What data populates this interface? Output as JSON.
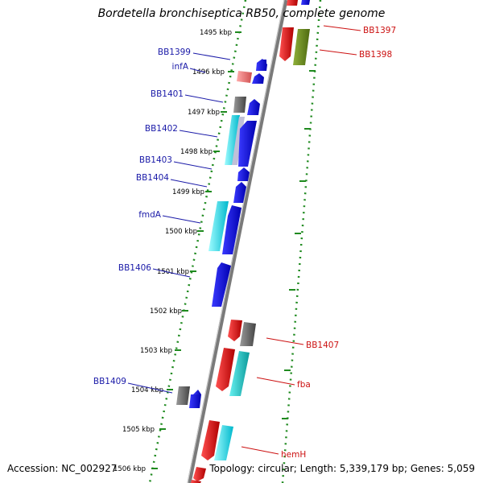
{
  "title": "Bordetella bronchiseptica RB50, complete genome",
  "footer": {
    "accession": "Accession: NC_002927",
    "summary": "Topology: circular; Length: 5,339,179 bp; Genes: 5,059"
  },
  "ticks": [
    "1495 kbp",
    "1496 kbp",
    "1497 kbp",
    "1498 kbp",
    "1499 kbp",
    "1500 kbp",
    "1501 kbp",
    "1502 kbp",
    "1503 kbp",
    "1504 kbp",
    "1505 kbp",
    "1506 kbp"
  ],
  "left_labels": [
    "BB1399",
    "infA",
    "BB1401",
    "BB1402",
    "BB1403",
    "BB1404",
    "fmdA",
    "BB1406",
    "BB1409"
  ],
  "right_labels": [
    "BB1397",
    "BB1398",
    "BB1407",
    "fba",
    "hemH"
  ],
  "colors": {
    "backbone": "#8c8c8c",
    "dotted_track": "#1f8a1f",
    "left_label": "#1a1aa8",
    "right_label": "#cc1111",
    "blue": "#0a0ae6",
    "cyan": "#20e0e8",
    "red": "#ee1111",
    "grey": "#6e6e6e",
    "olive": "#6a8c1a",
    "pink": "#e88888",
    "teal": "#22c4c4"
  }
}
